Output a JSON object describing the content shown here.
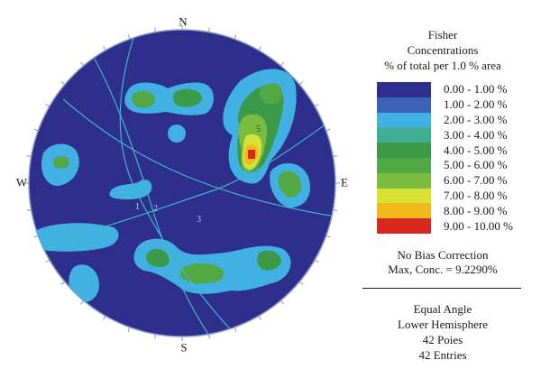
{
  "compass": {
    "north": "N",
    "south": "S",
    "east": "E",
    "west": "W"
  },
  "great_circle_labels": [
    "1",
    "2",
    "3",
    "5"
  ],
  "legend": {
    "title_lines": [
      "Fisher",
      "Concentrations",
      "% of total per 1.0 % area"
    ],
    "classes": [
      {
        "label": "0.00 - 1.00 %",
        "color": "#2e2f8c"
      },
      {
        "label": "1.00 - 2.00 %",
        "color": "#3a63b8"
      },
      {
        "label": "2.00 - 3.00 %",
        "color": "#41b1e3"
      },
      {
        "label": "3.00 - 4.00 %",
        "color": "#3fae95"
      },
      {
        "label": "4.00 - 5.00 %",
        "color": "#3b9a48"
      },
      {
        "label": "5.00 - 6.00 %",
        "color": "#52a843"
      },
      {
        "label": "6.00 - 7.00 %",
        "color": "#79bc3f"
      },
      {
        "label": "7.00 - 8.00 %",
        "color": "#d7e234"
      },
      {
        "label": "8.00 - 9.00 %",
        "color": "#f1b91c"
      },
      {
        "label": "9.00 - 10.00 %",
        "color": "#d7281f"
      }
    ]
  },
  "stats": {
    "bias": "No Bias Correction",
    "max": "Max, Conc. = 9.2290%"
  },
  "projection": {
    "angle": "Equal Angle",
    "hemisphere": "Lower Hemisphere",
    "poles": "42 Poies",
    "entries": "42 Entries"
  },
  "net_background_color": "#2e2f8c",
  "great_circle_color": "#3fb8c8"
}
